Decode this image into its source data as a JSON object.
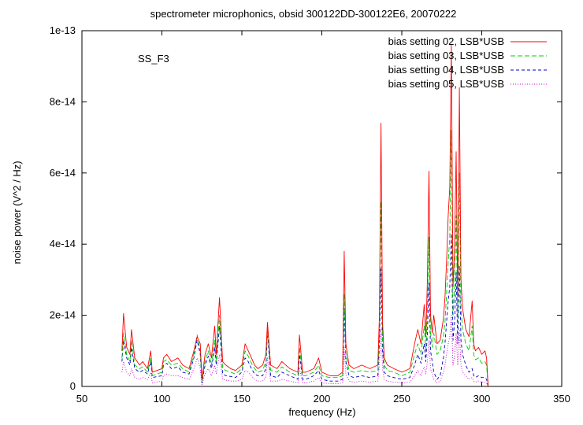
{
  "chart_data": {
    "type": "line",
    "title": "spectrometer microphonics, obsid 300122DD-300122E6, 20070222",
    "xlabel": "frequency (Hz)",
    "ylabel": "noise power (V^2 / Hz)",
    "annotation": "SS_F3",
    "xlim": [
      50,
      350
    ],
    "ylim": [
      0,
      1e-13
    ],
    "x_ticks": [
      "50",
      "100",
      "150",
      "200",
      "250",
      "300",
      "350"
    ],
    "y_ticks": [
      "0",
      "2e-14",
      "4e-14",
      "6e-14",
      "8e-14",
      "1e-13"
    ],
    "x_tick_values": [
      50,
      100,
      150,
      200,
      250,
      300,
      350
    ],
    "y_tick_values": [
      0,
      2e-14,
      4e-14,
      6e-14,
      8e-14,
      1e-13
    ],
    "grid": false,
    "legend_position": "top-right",
    "series": [
      {
        "name": "bias setting 02, LSB*USB",
        "color": "#ff0000",
        "dash": "",
        "x": [
          75,
          76,
          78,
          80,
          81,
          83,
          86,
          88,
          91,
          93,
          94,
          100,
          101,
          103,
          106,
          110,
          113,
          117,
          120,
          122,
          124,
          125,
          127,
          129,
          131,
          133,
          134,
          136,
          138,
          140,
          143,
          146,
          150,
          152,
          154,
          156,
          158,
          160,
          163,
          165,
          166,
          168,
          172,
          175,
          180,
          185,
          186,
          188,
          190,
          195,
          198,
          200,
          205,
          210,
          213,
          214,
          215,
          217,
          220,
          225,
          230,
          235,
          236,
          237,
          238,
          239,
          241,
          245,
          250,
          255,
          258,
          260,
          262,
          264,
          265,
          266,
          267,
          268,
          269,
          270,
          272,
          274,
          276,
          277,
          278,
          279,
          280,
          281,
          282,
          283,
          284,
          285,
          286,
          287,
          288,
          290,
          292,
          294,
          295,
          296,
          298,
          300,
          302,
          303,
          304
        ],
        "y": [
          1e-14,
          2.05e-14,
          1.1e-14,
          9e-15,
          1.6e-14,
          8e-15,
          6e-15,
          7e-15,
          5e-15,
          1e-14,
          4e-15,
          5e-15,
          8e-15,
          9e-15,
          7e-15,
          8e-15,
          6e-15,
          5e-15,
          1e-14,
          1.4e-14,
          1.2e-14,
          2e-15,
          9e-15,
          1.2e-14,
          8e-15,
          1.7e-14,
          9e-15,
          2.5e-14,
          7e-15,
          6e-15,
          5e-15,
          4.5e-15,
          6e-15,
          1.2e-14,
          1e-14,
          8e-15,
          6e-15,
          5e-15,
          6e-15,
          9e-15,
          1.8e-14,
          6e-15,
          5e-15,
          7e-15,
          5e-15,
          4e-15,
          1.45e-14,
          4e-15,
          4e-15,
          5e-15,
          8e-15,
          4e-15,
          3e-15,
          3e-15,
          4e-15,
          3.8e-14,
          1.2e-14,
          6e-15,
          5e-15,
          6e-15,
          5e-15,
          6e-15,
          2e-14,
          7.4e-14,
          1.8e-14,
          8e-15,
          6e-15,
          5e-15,
          4e-15,
          5e-15,
          1.2e-14,
          1.6e-14,
          1.2e-14,
          2.3e-14,
          1.4e-14,
          3e-14,
          6.05e-14,
          2e-14,
          1.5e-14,
          2e-14,
          1.2e-14,
          1.3e-14,
          1.9e-14,
          2.5e-14,
          3.5e-14,
          4.8e-14,
          5.6e-14,
          9.6e-14,
          2.8e-14,
          3.8e-14,
          6.6e-14,
          2.5e-14,
          8.4e-14,
          3e-14,
          2.2e-14,
          1.6e-14,
          1.4e-14,
          2.4e-14,
          1.2e-14,
          1e-14,
          1.1e-14,
          9e-15,
          1e-14,
          8e-15,
          0.0
        ]
      },
      {
        "name": "bias setting 03, LSB*USB",
        "color": "#00cc00",
        "dash": "6,3",
        "x": [
          75,
          76,
          78,
          80,
          81,
          83,
          86,
          88,
          91,
          93,
          94,
          100,
          101,
          103,
          106,
          110,
          113,
          117,
          120,
          122,
          124,
          125,
          127,
          129,
          131,
          133,
          134,
          136,
          138,
          140,
          143,
          146,
          150,
          152,
          154,
          156,
          158,
          160,
          163,
          165,
          166,
          168,
          172,
          175,
          180,
          185,
          186,
          188,
          190,
          195,
          198,
          200,
          205,
          210,
          213,
          214,
          215,
          217,
          220,
          225,
          230,
          235,
          236,
          237,
          238,
          239,
          241,
          245,
          250,
          255,
          258,
          260,
          262,
          264,
          265,
          266,
          267,
          268,
          269,
          270,
          272,
          274,
          276,
          277,
          278,
          279,
          280,
          281,
          282,
          283,
          284,
          285,
          286,
          287,
          288,
          290,
          292,
          294,
          295,
          296,
          298,
          300,
          302,
          303,
          304
        ],
        "y": [
          8e-15,
          1.5e-14,
          9e-15,
          7e-15,
          1.3e-14,
          6e-15,
          5e-15,
          5.5e-15,
          4e-15,
          8e-15,
          3e-15,
          4e-15,
          7e-15,
          7.5e-15,
          6e-15,
          6.5e-15,
          5e-15,
          4e-15,
          9e-15,
          1.45e-14,
          1e-14,
          1.5e-15,
          7e-15,
          1e-14,
          6e-15,
          1.3e-14,
          7e-15,
          2e-14,
          5e-15,
          4.5e-15,
          4e-15,
          3.5e-15,
          5e-15,
          1e-14,
          8.5e-15,
          6.5e-15,
          5e-15,
          4e-15,
          4.5e-15,
          7e-15,
          1.7e-14,
          4.5e-15,
          4e-15,
          5.5e-15,
          4e-15,
          3e-15,
          1.1e-14,
          3e-15,
          3e-15,
          4e-15,
          6e-15,
          3e-15,
          2.5e-15,
          2.5e-15,
          3e-15,
          2.6e-14,
          9e-15,
          4.5e-15,
          4e-15,
          4.5e-15,
          4e-15,
          4.5e-15,
          1.5e-14,
          5.2e-14,
          1.3e-14,
          6e-15,
          4.5e-15,
          4e-15,
          3e-15,
          4e-15,
          9e-15,
          1.2e-14,
          9e-15,
          1.7e-14,
          1e-14,
          2.2e-14,
          4.2e-14,
          1.5e-14,
          1.1e-14,
          1.5e-14,
          9e-15,
          1e-14,
          1.4e-14,
          1.8e-14,
          2.6e-14,
          3.5e-14,
          4.2e-14,
          7.2e-14,
          2e-14,
          2.8e-14,
          4.8e-14,
          1.8e-14,
          6e-14,
          2.2e-14,
          1.6e-14,
          1.2e-14,
          1e-14,
          1.7e-14,
          9e-15,
          7.5e-15,
          8e-15,
          6.5e-15,
          7e-15,
          6e-15,
          0.0
        ]
      },
      {
        "name": "bias setting 04, LSB*USB",
        "color": "#0000cc",
        "dash": "4,3",
        "x": [
          75,
          76,
          78,
          80,
          81,
          83,
          86,
          88,
          91,
          93,
          94,
          100,
          101,
          103,
          106,
          110,
          113,
          117,
          120,
          122,
          124,
          125,
          127,
          129,
          131,
          133,
          134,
          136,
          138,
          140,
          143,
          146,
          150,
          152,
          154,
          156,
          158,
          160,
          163,
          165,
          166,
          168,
          172,
          175,
          180,
          185,
          186,
          188,
          190,
          195,
          198,
          200,
          205,
          210,
          213,
          214,
          215,
          217,
          220,
          225,
          230,
          235,
          236,
          237,
          238,
          239,
          241,
          245,
          250,
          255,
          258,
          260,
          262,
          264,
          265,
          266,
          267,
          268,
          269,
          270,
          272,
          274,
          276,
          277,
          278,
          279,
          280,
          281,
          282,
          283,
          284,
          285,
          286,
          287,
          288,
          290,
          292,
          294,
          295,
          296,
          298,
          300,
          302,
          303,
          304
        ],
        "y": [
          7e-15,
          1.3e-14,
          8e-15,
          6e-15,
          1.1e-14,
          5e-15,
          4e-15,
          4.5e-15,
          3.5e-15,
          7e-15,
          2.5e-15,
          3e-15,
          6e-15,
          6.5e-15,
          5e-15,
          5.5e-15,
          4e-15,
          3.5e-15,
          8e-15,
          1.3e-14,
          9e-15,
          1e-15,
          6e-15,
          8.5e-15,
          5e-15,
          1.1e-14,
          6e-15,
          1.7e-14,
          3.5e-15,
          3e-15,
          2.8e-15,
          2.5e-15,
          4e-15,
          8e-15,
          7e-15,
          5e-15,
          3.5e-15,
          3e-15,
          3e-15,
          5e-15,
          1.55e-14,
          3e-15,
          2.5e-15,
          4e-15,
          3e-15,
          2e-15,
          9e-15,
          2e-15,
          2e-15,
          3e-15,
          4.5e-15,
          2e-15,
          1.5e-15,
          1.5e-15,
          2e-15,
          2.2e-14,
          7e-15,
          3e-15,
          2.5e-15,
          3e-15,
          2.5e-15,
          3e-15,
          1.2e-14,
          3.3e-14,
          1e-14,
          4e-15,
          3e-15,
          2.5e-15,
          2e-15,
          2.5e-15,
          6e-15,
          9e-15,
          6.5e-15,
          1.2e-14,
          7e-15,
          1.5e-14,
          2.9e-14,
          1e-14,
          7e-15,
          4e-15,
          2e-15,
          3e-15,
          8e-15,
          1.2e-14,
          1.8e-14,
          2.4e-14,
          2.8e-14,
          4.3e-14,
          1.3e-14,
          1.8e-14,
          3.2e-14,
          1.2e-14,
          3.4e-14,
          1.3e-14,
          9e-15,
          6e-15,
          4e-15,
          5e-15,
          3e-15,
          2.5e-15,
          3e-15,
          2.5e-15,
          2.5e-15,
          2e-15,
          0.0
        ]
      },
      {
        "name": "bias setting 05, LSB*USB",
        "color": "#cc00cc",
        "dash": "1,2",
        "x": [
          75,
          76,
          78,
          80,
          81,
          83,
          86,
          88,
          91,
          93,
          94,
          100,
          101,
          103,
          106,
          110,
          113,
          117,
          120,
          122,
          124,
          125,
          127,
          129,
          131,
          133,
          134,
          136,
          138,
          140,
          143,
          146,
          150,
          152,
          154,
          156,
          158,
          160,
          163,
          165,
          166,
          168,
          172,
          175,
          180,
          185,
          186,
          188,
          190,
          195,
          198,
          200,
          205,
          210,
          213,
          214,
          215,
          217,
          220,
          225,
          230,
          235,
          236,
          237,
          238,
          239,
          241,
          245,
          250,
          255,
          258,
          260,
          262,
          264,
          265,
          266,
          267,
          268,
          269,
          270,
          272,
          274,
          276,
          277,
          278,
          279,
          280,
          281,
          282,
          283,
          284,
          285,
          286,
          287,
          288,
          290,
          292,
          294,
          295,
          296,
          298,
          300,
          302,
          303,
          304
        ],
        "y": [
          4e-15,
          7e-15,
          4e-15,
          3e-15,
          5e-15,
          2.5e-15,
          2e-15,
          2.5e-15,
          2e-15,
          4e-15,
          1e-15,
          1.5e-15,
          3e-15,
          3.5e-15,
          3e-15,
          3e-15,
          2.5e-15,
          2e-15,
          5e-15,
          8e-15,
          5e-15,
          5e-16,
          3.5e-15,
          5e-15,
          3e-15,
          6e-15,
          3.5e-15,
          9e-15,
          2e-15,
          1.8e-15,
          1.5e-15,
          1.5e-15,
          2e-15,
          4.5e-15,
          4e-15,
          3e-15,
          2e-15,
          1.5e-15,
          1.5e-15,
          2.5e-15,
          8e-15,
          1.5e-15,
          1.5e-15,
          2e-15,
          1.5e-15,
          1e-15,
          5e-15,
          1e-15,
          1e-15,
          1.5e-15,
          2.5e-15,
          1e-15,
          8e-16,
          8e-16,
          1e-15,
          1.1e-14,
          3.5e-15,
          1.5e-15,
          1.2e-15,
          1.5e-15,
          1.2e-15,
          1.5e-15,
          6e-15,
          1.6e-14,
          5e-15,
          2e-15,
          1.5e-15,
          1.2e-15,
          1e-15,
          1.2e-15,
          3e-15,
          4.5e-15,
          3e-15,
          5.5e-15,
          3.5e-15,
          7e-15,
          1.3e-14,
          5e-15,
          3.5e-15,
          2e-15,
          1e-15,
          1.5e-15,
          4e-15,
          6e-15,
          9e-15,
          1.2e-14,
          1.4e-14,
          2e-14,
          6e-15,
          9e-15,
          1.5e-14,
          6e-15,
          1.6e-14,
          6e-15,
          4e-15,
          3e-15,
          2e-15,
          2.5e-15,
          1.5e-15,
          1.2e-15,
          1.5e-15,
          1.2e-15,
          1.2e-15,
          1e-15,
          0.0
        ]
      }
    ]
  }
}
